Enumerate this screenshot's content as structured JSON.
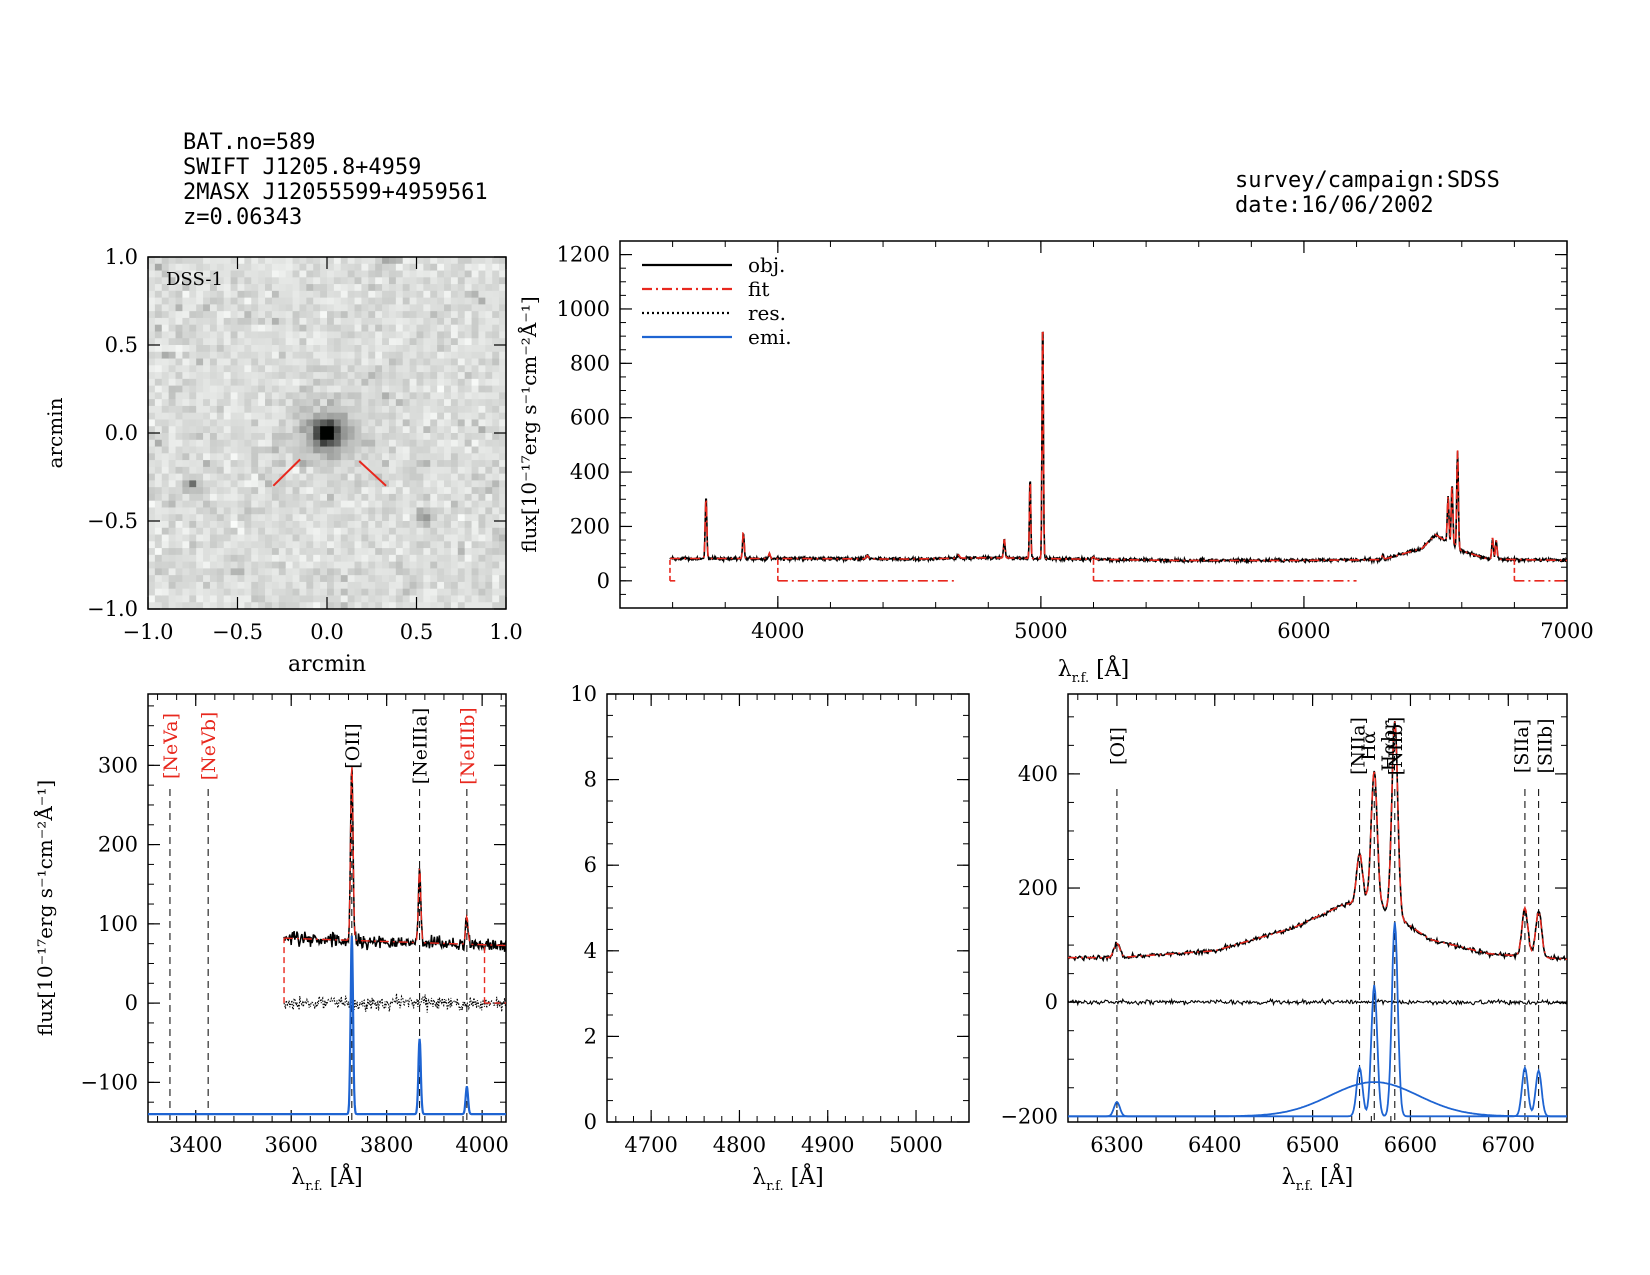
{
  "header": {
    "bat": "BAT.no=589",
    "swift": "SWIFT J1205.8+4959",
    "twomass": "2MASX J12055599+4959561",
    "z": "z=0.06343",
    "survey": "survey/campaign:SDSS",
    "date": "date:16/06/2002"
  },
  "colors": {
    "obj": "#000000",
    "fit": "#e8281e",
    "res": "#000000",
    "emi": "#1e64d2",
    "image_bg": "#dcdedc"
  },
  "chart_data": [
    {
      "type": "image",
      "label": "DSS-1",
      "xlabel": "arcmin",
      "ylabel": "arcmin",
      "xlim": [
        -1.0,
        1.0
      ],
      "ylim": [
        -1.0,
        1.0
      ],
      "xticks": [
        "−1.0",
        "−0.5",
        "0.0",
        "0.5",
        "1.0"
      ],
      "yticks": [
        "1.0",
        "0.5",
        "0.0",
        "−0.5",
        "−1.0"
      ],
      "source": {
        "x": 0.0,
        "y": 0.0
      },
      "marker_lines": [
        {
          "x1": -0.3,
          "y1": -0.3,
          "x2": -0.15,
          "y2": -0.15
        },
        {
          "x1": 0.18,
          "y1": -0.16,
          "x2": 0.33,
          "y2": -0.3
        }
      ]
    },
    {
      "type": "line",
      "xlabel_base": "λ",
      "xlabel_sub": "r.f.",
      "xlabel_unit": "[Å]",
      "ylabel": "flux[10⁻¹⁷erg s⁻¹cm⁻²Å⁻¹]",
      "xlim": [
        3400,
        7000
      ],
      "ylim": [
        -100,
        1250
      ],
      "xticks": [
        4000,
        5000,
        6000,
        7000
      ],
      "yticks": [
        0,
        200,
        400,
        600,
        800,
        1000,
        1200
      ],
      "legend": [
        {
          "label": "obj.",
          "style": "solid",
          "color": "#000000"
        },
        {
          "label": "fit",
          "style": "dashdot",
          "color": "#e8281e"
        },
        {
          "label": "res.",
          "style": "dotted",
          "color": "#000000"
        },
        {
          "label": "emi.",
          "style": "solid",
          "color": "#1e64d2"
        }
      ],
      "continuum": [
        [
          3590,
          82
        ],
        [
          4000,
          82
        ],
        [
          4500,
          80
        ],
        [
          4800,
          85
        ],
        [
          5000,
          82
        ],
        [
          5500,
          75
        ],
        [
          6000,
          75
        ],
        [
          6300,
          78
        ],
        [
          6450,
          120
        ],
        [
          6500,
          170
        ],
        [
          6600,
          110
        ],
        [
          6700,
          80
        ],
        [
          7000,
          75
        ]
      ],
      "lines": [
        [
          3727,
          230,
          3
        ],
        [
          3869,
          100,
          3
        ],
        [
          3968,
          20,
          3
        ],
        [
          4340,
          12,
          4
        ],
        [
          4686,
          12,
          5
        ],
        [
          4861,
          70,
          3
        ],
        [
          4959,
          300,
          2.5
        ],
        [
          5007,
          900,
          2.5
        ],
        [
          5200,
          8,
          4
        ],
        [
          6300,
          20,
          3
        ],
        [
          6548,
          170,
          3
        ],
        [
          6563,
          230,
          3
        ],
        [
          6584,
          360,
          3
        ],
        [
          6717,
          80,
          3
        ],
        [
          6731,
          70,
          3
        ]
      ],
      "fit_zero_segments": [
        [
          3590,
          3610
        ],
        [
          4000,
          4670
        ],
        [
          5200,
          6200
        ],
        [
          6800,
          7000
        ]
      ]
    },
    {
      "type": "line",
      "xlabel_base": "λ",
      "xlabel_sub": "r.f.",
      "xlabel_unit": "[Å]",
      "ylabel": "flux[10⁻¹⁷erg s⁻¹cm⁻²Å⁻¹]",
      "xlim": [
        3300,
        4050
      ],
      "ylim": [
        -150,
        390
      ],
      "xticks": [
        3400,
        3600,
        3800,
        4000
      ],
      "yticks": [
        -100,
        0,
        100,
        200,
        300
      ],
      "line_markers": [
        {
          "x": 3346,
          "label": "[NeVa]",
          "color": "#e8281e"
        },
        {
          "x": 3426,
          "label": "[NeVb]",
          "color": "#e8281e"
        },
        {
          "x": 3727,
          "label": "[OII]",
          "color": "#000000"
        },
        {
          "x": 3869,
          "label": "[NeIIIa]",
          "color": "#000000"
        },
        {
          "x": 3968,
          "label": "[NeIIIb]",
          "color": "#e8281e"
        }
      ],
      "obj_x_range": [
        3585,
        4050
      ],
      "continuum_level": 82,
      "emission_offset": -140,
      "lines": [
        [
          3727,
          225,
          2.5
        ],
        [
          3869,
          95,
          2.5
        ],
        [
          3968,
          35,
          2.5
        ]
      ]
    },
    {
      "type": "line",
      "xlabel_base": "λ",
      "xlabel_sub": "r.f.",
      "xlabel_unit": "[Å]",
      "xlim": [
        4650,
        5060
      ],
      "ylim": [
        0,
        10
      ],
      "xticks": [
        4700,
        4800,
        4900,
        5000
      ],
      "yticks": [
        0,
        2,
        4,
        6,
        8,
        10
      ]
    },
    {
      "type": "line",
      "xlabel_base": "λ",
      "xlabel_sub": "r.f.",
      "xlabel_unit": "[Å]",
      "xlim": [
        6250,
        6760
      ],
      "ylim": [
        -210,
        540
      ],
      "xticks": [
        6300,
        6400,
        6500,
        6600,
        6700
      ],
      "yticks": [
        -200,
        0,
        200,
        400
      ],
      "line_markers": [
        {
          "x": 6300,
          "label": "[OI]",
          "color": "#000000"
        },
        {
          "x": 6548,
          "label": "[NIIa]",
          "color": "#000000"
        },
        {
          "x": 6563,
          "label": "Hα",
          "color": "#000000"
        },
        {
          "x": 6563,
          "label": "Hαbr",
          "color": "#000000"
        },
        {
          "x": 6584,
          "label": "[NIIb]",
          "color": "#000000"
        },
        {
          "x": 6717,
          "label": "[SIIa]",
          "color": "#000000"
        },
        {
          "x": 6731,
          "label": "[SIIb]",
          "color": "#000000"
        }
      ],
      "emission_offset": -200,
      "continuum": [
        [
          6250,
          78
        ],
        [
          6300,
          78
        ],
        [
          6400,
          90
        ],
        [
          6480,
          130
        ],
        [
          6530,
          170
        ],
        [
          6560,
          180
        ],
        [
          6620,
          110
        ],
        [
          6680,
          85
        ],
        [
          6760,
          75
        ]
      ],
      "lines": [
        [
          6300,
          25,
          3
        ],
        [
          6548,
          85,
          3
        ],
        [
          6563,
          230,
          3
        ],
        [
          6584,
          340,
          3
        ],
        [
          6717,
          85,
          3
        ],
        [
          6731,
          80,
          3
        ]
      ],
      "broad": [
        6563,
        60,
        45
      ]
    }
  ]
}
